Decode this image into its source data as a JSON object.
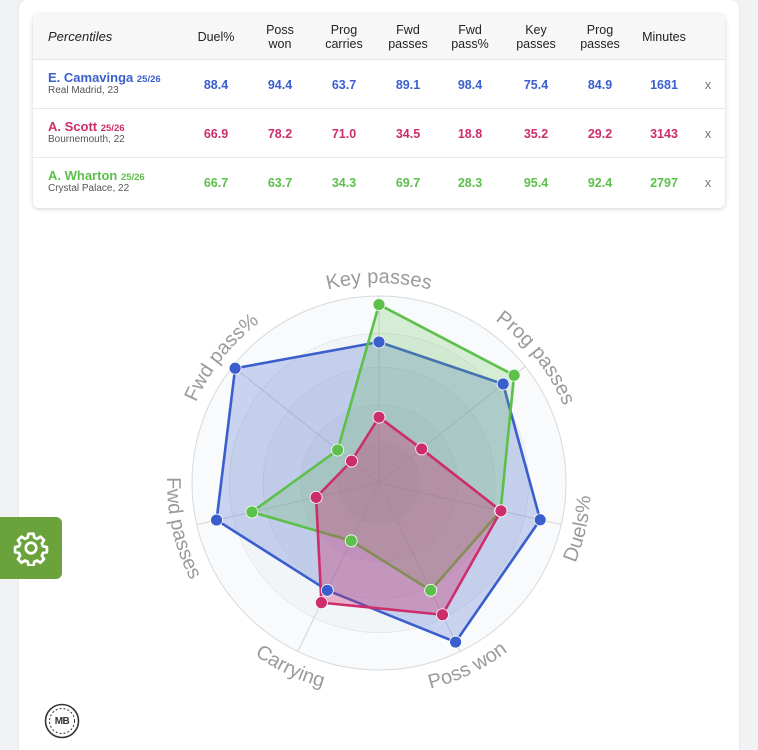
{
  "table": {
    "header_first": "Percentiles",
    "headers": [
      "Duel%",
      "Poss\nwon",
      "Prog\ncarries",
      "Fwd\npasses",
      "Fwd\npass%",
      "Key\npasses",
      "Prog\npasses",
      "Minutes"
    ],
    "close_symbol": "x",
    "rows": [
      {
        "name": "E. Camavinga",
        "season": "25/26",
        "team": "Real Madrid, 23",
        "color": "#3a5fcd",
        "values": [
          "88.4",
          "94.4",
          "63.7",
          "89.1",
          "98.4",
          "75.4",
          "84.9",
          "1681"
        ]
      },
      {
        "name": "A. Scott",
        "season": "25/26",
        "team": "Bournemouth, 22",
        "color": "#cc2e6c",
        "values": [
          "66.9",
          "78.2",
          "71.0",
          "34.5",
          "18.8",
          "35.2",
          "29.2",
          "3143"
        ]
      },
      {
        "name": "A. Wharton",
        "season": "25/26",
        "team": "Crystal Palace, 22",
        "color": "#5cc04a",
        "values": [
          "66.7",
          "63.7",
          "34.3",
          "69.7",
          "28.3",
          "95.4",
          "92.4",
          "2797"
        ]
      }
    ]
  },
  "chart_data": {
    "type": "radar",
    "axes": [
      "Key passes",
      "Prog passes",
      "Duels%",
      "Poss won",
      "Carrying",
      "Fwd passes",
      "Fwd pass%"
    ],
    "range": [
      0,
      100
    ],
    "series": [
      {
        "name": "E. Camavinga",
        "color": "#3a5fcd",
        "values": [
          75.4,
          84.9,
          88.4,
          94.4,
          63.7,
          89.1,
          98.4
        ]
      },
      {
        "name": "A. Scott",
        "color": "#cc2e6c",
        "values": [
          35.2,
          29.2,
          66.9,
          78.2,
          71.0,
          34.5,
          18.8
        ]
      },
      {
        "name": "A. Wharton",
        "color": "#5cc04a",
        "values": [
          95.4,
          92.4,
          66.7,
          63.7,
          34.3,
          69.7,
          28.3
        ]
      }
    ]
  },
  "settings": {
    "icon": "gear-icon",
    "color": "#6aa33c"
  },
  "logo": {
    "text": "MB"
  }
}
